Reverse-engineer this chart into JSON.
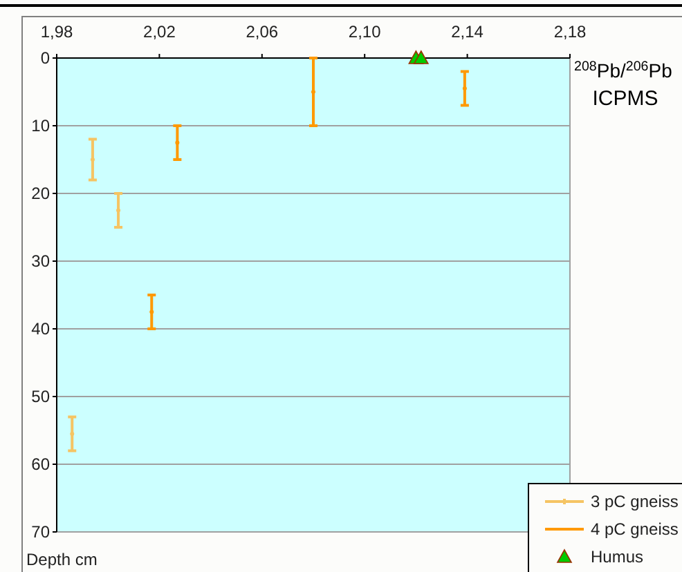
{
  "chart_data": {
    "type": "scatter",
    "xlabel": "$^{208}$Pb/$^{206}$Pb\nICPMS",
    "ylabel": "Depth cm",
    "xlim": [
      1.98,
      2.18
    ],
    "xticks": [
      {
        "value": 1.98,
        "label": "1,98"
      },
      {
        "value": 2.02,
        "label": "2,02"
      },
      {
        "value": 2.06,
        "label": "2,06"
      },
      {
        "value": 2.1,
        "label": "2,10"
      },
      {
        "value": 2.14,
        "label": "2,14"
      },
      {
        "value": 2.18,
        "label": "2,18"
      }
    ],
    "ylim": [
      70,
      0
    ],
    "yticks": [
      0,
      10,
      20,
      30,
      40,
      50,
      60,
      70
    ],
    "grid": "y",
    "legend": "bottom right",
    "series": [
      {
        "name": "3 pC gneiss",
        "color": "#f5c463",
        "x": [
          1.994,
          2.004,
          1.986
        ],
        "values": [
          15,
          22.5,
          55.5
        ],
        "errors": [
          3,
          2.5,
          2.5
        ]
      },
      {
        "name": "4 pC gneiss",
        "color": "#ff9900",
        "x": [
          2.027,
          2.08,
          2.017,
          2.139
        ],
        "values": [
          12.5,
          5,
          37.5,
          4.5
        ],
        "errors": [
          2.5,
          5,
          2.5,
          2.5
        ]
      },
      {
        "name": "Humus",
        "color": "#00cc00",
        "marker": "triangle",
        "x": [
          2.12,
          2.122
        ],
        "values": [
          0,
          0
        ]
      }
    ]
  }
}
